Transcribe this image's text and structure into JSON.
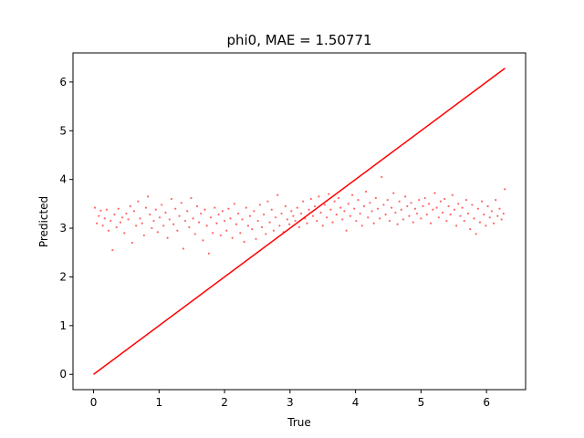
{
  "chart_data": {
    "type": "scatter",
    "title": "phi0, MAE = 1.50771",
    "xlabel": "True",
    "ylabel": "Predicted",
    "xlim": [
      -0.314,
      6.597
    ],
    "ylim": [
      -0.314,
      6.597
    ],
    "x_ticks": [
      0,
      1,
      2,
      3,
      4,
      5,
      6
    ],
    "y_ticks": [
      0,
      1,
      2,
      3,
      4,
      5,
      6
    ],
    "x_tick_labels": [
      "0",
      "1",
      "2",
      "3",
      "4",
      "5",
      "6"
    ],
    "y_tick_labels": [
      "0",
      "1",
      "2",
      "3",
      "4",
      "5",
      "6"
    ],
    "grid": false,
    "legend": "none",
    "scatter_color": "#ff0000",
    "scatter_alpha": 0.6,
    "line_color": "#ff0000",
    "series": [
      {
        "type": "line",
        "x": [
          0,
          6.283
        ],
        "y": [
          0,
          6.283
        ]
      },
      {
        "type": "scatter",
        "points": [
          [
            0.02,
            3.42
          ],
          [
            0.05,
            3.1
          ],
          [
            0.08,
            3.25
          ],
          [
            0.11,
            3.36
          ],
          [
            0.14,
            3.05
          ],
          [
            0.17,
            3.2
          ],
          [
            0.2,
            3.38
          ],
          [
            0.23,
            2.95
          ],
          [
            0.26,
            3.15
          ],
          [
            0.29,
            2.55
          ],
          [
            0.32,
            3.28
          ],
          [
            0.35,
            3.02
          ],
          [
            0.38,
            3.4
          ],
          [
            0.41,
            3.12
          ],
          [
            0.44,
            3.22
          ],
          [
            0.47,
            2.9
          ],
          [
            0.5,
            3.3
          ],
          [
            0.53,
            3.18
          ],
          [
            0.56,
            3.45
          ],
          [
            0.59,
            2.7
          ],
          [
            0.62,
            3.35
          ],
          [
            0.65,
            3.05
          ],
          [
            0.68,
            3.55
          ],
          [
            0.71,
            3.2
          ],
          [
            0.74,
            3.1
          ],
          [
            0.77,
            2.85
          ],
          [
            0.8,
            3.42
          ],
          [
            0.83,
            3.65
          ],
          [
            0.86,
            3.28
          ],
          [
            0.89,
            3.0
          ],
          [
            0.92,
            3.15
          ],
          [
            0.95,
            3.38
          ],
          [
            0.98,
            2.92
          ],
          [
            1.01,
            3.22
          ],
          [
            1.04,
            3.48
          ],
          [
            1.07,
            3.05
          ],
          [
            1.1,
            3.32
          ],
          [
            1.13,
            2.8
          ],
          [
            1.16,
            3.18
          ],
          [
            1.19,
            3.6
          ],
          [
            1.22,
            3.08
          ],
          [
            1.25,
            3.4
          ],
          [
            1.28,
            2.95
          ],
          [
            1.31,
            3.25
          ],
          [
            1.34,
            3.52
          ],
          [
            1.37,
            2.58
          ],
          [
            1.4,
            3.15
          ],
          [
            1.43,
            3.35
          ],
          [
            1.46,
            3.02
          ],
          [
            1.49,
            3.62
          ],
          [
            1.52,
            3.2
          ],
          [
            1.55,
            2.88
          ],
          [
            1.58,
            3.45
          ],
          [
            1.61,
            3.12
          ],
          [
            1.64,
            3.3
          ],
          [
            1.67,
            2.75
          ],
          [
            1.7,
            3.38
          ],
          [
            1.73,
            3.05
          ],
          [
            1.76,
            2.48
          ],
          [
            1.79,
            3.22
          ],
          [
            1.82,
            2.9
          ],
          [
            1.85,
            3.42
          ],
          [
            1.88,
            3.1
          ],
          [
            1.91,
            3.28
          ],
          [
            1.94,
            2.85
          ],
          [
            1.97,
            3.35
          ],
          [
            2.0,
            3.15
          ],
          [
            2.03,
            2.95
          ],
          [
            2.06,
            3.4
          ],
          [
            2.09,
            3.2
          ],
          [
            2.12,
            2.8
          ],
          [
            2.15,
            3.5
          ],
          [
            2.18,
            3.08
          ],
          [
            2.21,
            3.3
          ],
          [
            2.24,
            2.9
          ],
          [
            2.27,
            3.18
          ],
          [
            2.3,
            2.72
          ],
          [
            2.33,
            3.42
          ],
          [
            2.36,
            3.05
          ],
          [
            2.39,
            3.25
          ],
          [
            2.42,
            2.98
          ],
          [
            2.45,
            3.35
          ],
          [
            2.48,
            2.78
          ],
          [
            2.51,
            3.15
          ],
          [
            2.54,
            3.48
          ],
          [
            2.57,
            3.02
          ],
          [
            2.6,
            3.28
          ],
          [
            2.63,
            2.88
          ],
          [
            2.66,
            3.55
          ],
          [
            2.69,
            3.12
          ],
          [
            2.72,
            3.38
          ],
          [
            2.75,
            2.95
          ],
          [
            2.78,
            3.22
          ],
          [
            2.81,
            3.68
          ],
          [
            2.84,
            3.05
          ],
          [
            2.87,
            3.3
          ],
          [
            2.9,
            2.92
          ],
          [
            2.93,
            3.45
          ],
          [
            2.96,
            3.18
          ],
          [
            2.99,
            3.08
          ],
          [
            3.02,
            3.35
          ],
          [
            3.05,
            3.25
          ],
          [
            3.08,
            3.15
          ],
          [
            3.11,
            3.42
          ],
          [
            3.14,
            3.02
          ],
          [
            3.17,
            3.3
          ],
          [
            3.2,
            3.55
          ],
          [
            3.23,
            3.2
          ],
          [
            3.26,
            3.1
          ],
          [
            3.29,
            3.38
          ],
          [
            3.32,
            3.6
          ],
          [
            3.35,
            3.25
          ],
          [
            3.38,
            3.45
          ],
          [
            3.41,
            3.15
          ],
          [
            3.44,
            3.65
          ],
          [
            3.47,
            3.32
          ],
          [
            3.5,
            3.05
          ],
          [
            3.53,
            3.48
          ],
          [
            3.56,
            3.22
          ],
          [
            3.59,
            3.7
          ],
          [
            3.62,
            3.38
          ],
          [
            3.65,
            3.12
          ],
          [
            3.68,
            3.55
          ],
          [
            3.71,
            3.28
          ],
          [
            3.74,
            3.62
          ],
          [
            3.77,
            3.42
          ],
          [
            3.8,
            3.18
          ],
          [
            3.83,
            3.35
          ],
          [
            3.86,
            2.95
          ],
          [
            3.89,
            3.5
          ],
          [
            3.92,
            3.25
          ],
          [
            3.95,
            3.68
          ],
          [
            3.98,
            3.4
          ],
          [
            4.01,
            3.15
          ],
          [
            4.04,
            3.58
          ],
          [
            4.07,
            3.3
          ],
          [
            4.1,
            3.05
          ],
          [
            4.13,
            3.45
          ],
          [
            4.16,
            3.75
          ],
          [
            4.19,
            3.22
          ],
          [
            4.22,
            3.52
          ],
          [
            4.25,
            3.35
          ],
          [
            4.28,
            3.1
          ],
          [
            4.31,
            3.62
          ],
          [
            4.34,
            3.4
          ],
          [
            4.37,
            3.2
          ],
          [
            4.4,
            4.05
          ],
          [
            4.43,
            3.48
          ],
          [
            4.46,
            3.28
          ],
          [
            4.49,
            3.58
          ],
          [
            4.52,
            3.15
          ],
          [
            4.55,
            3.42
          ],
          [
            4.58,
            3.72
          ],
          [
            4.61,
            3.32
          ],
          [
            4.64,
            3.08
          ],
          [
            4.67,
            3.55
          ],
          [
            4.7,
            3.38
          ],
          [
            4.73,
            3.18
          ],
          [
            4.76,
            3.65
          ],
          [
            4.79,
            3.45
          ],
          [
            4.82,
            3.25
          ],
          [
            4.85,
            3.52
          ],
          [
            4.88,
            3.12
          ],
          [
            4.91,
            3.4
          ],
          [
            4.94,
            3.3
          ],
          [
            4.97,
            3.58
          ],
          [
            5.0,
            3.2
          ],
          [
            5.03,
            3.45
          ],
          [
            5.06,
            3.62
          ],
          [
            5.09,
            3.28
          ],
          [
            5.12,
            3.5
          ],
          [
            5.15,
            3.1
          ],
          [
            5.18,
            3.38
          ],
          [
            5.21,
            3.72
          ],
          [
            5.24,
            3.42
          ],
          [
            5.27,
            3.22
          ],
          [
            5.3,
            3.55
          ],
          [
            5.33,
            3.32
          ],
          [
            5.36,
            3.6
          ],
          [
            5.39,
            3.15
          ],
          [
            5.42,
            3.45
          ],
          [
            5.45,
            3.28
          ],
          [
            5.48,
            3.68
          ],
          [
            5.51,
            3.38
          ],
          [
            5.54,
            3.05
          ],
          [
            5.57,
            3.5
          ],
          [
            5.6,
            3.25
          ],
          [
            5.63,
            3.42
          ],
          [
            5.66,
            3.15
          ],
          [
            5.69,
            3.58
          ],
          [
            5.72,
            3.3
          ],
          [
            5.75,
            2.98
          ],
          [
            5.78,
            3.48
          ],
          [
            5.81,
            3.2
          ],
          [
            5.84,
            2.88
          ],
          [
            5.87,
            3.4
          ],
          [
            5.9,
            3.12
          ],
          [
            5.93,
            3.55
          ],
          [
            5.96,
            3.28
          ],
          [
            5.99,
            3.05
          ],
          [
            6.02,
            3.45
          ],
          [
            6.05,
            3.22
          ],
          [
            6.08,
            3.35
          ],
          [
            6.11,
            3.1
          ],
          [
            6.14,
            3.58
          ],
          [
            6.17,
            3.25
          ],
          [
            6.2,
            3.4
          ],
          [
            6.23,
            3.18
          ],
          [
            6.26,
            3.3
          ],
          [
            6.28,
            3.8
          ]
        ]
      }
    ]
  }
}
